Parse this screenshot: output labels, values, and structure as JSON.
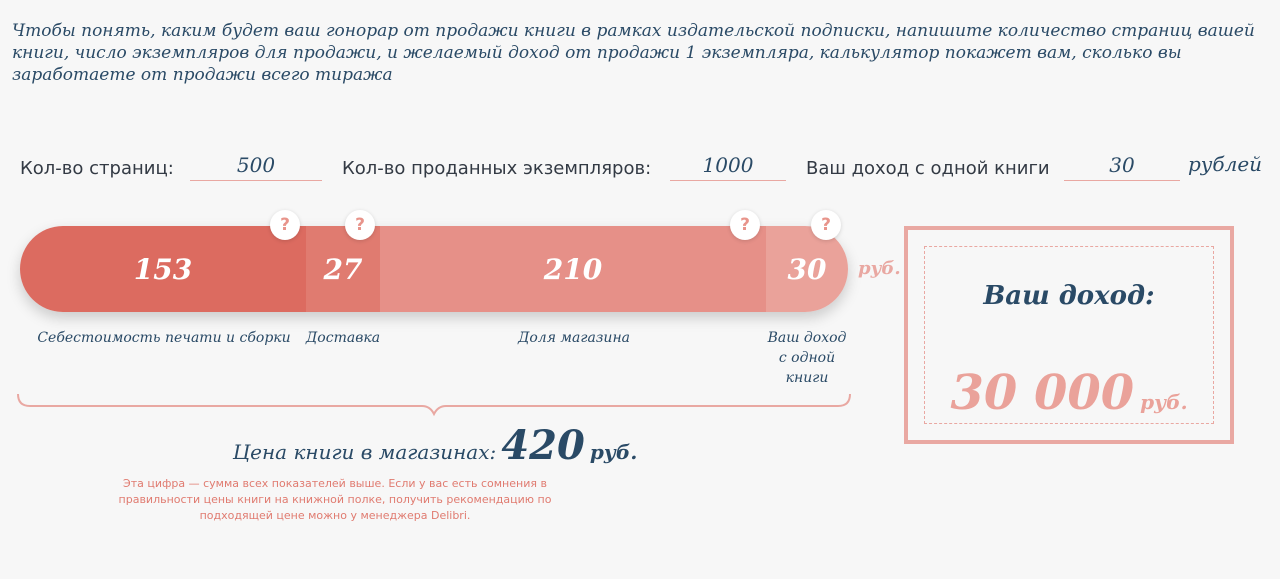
{
  "intro": "Чтобы понять, каким будет ваш гонорар от продажи книги в рамках издательской подписки, напишите количество страниц вашей книги, число экземпляров для продажи, и желаемый доход от продажи 1 экземпляра, калькулятор покажет вам, сколько вы заработаете от продажи всего тиража",
  "inputs": {
    "pages_label": "Кол-во страниц:",
    "pages_value": "500",
    "copies_label": "Кол-во проданных экземпляров:",
    "copies_value": "1000",
    "income_label": "Ваш доход с одной книги",
    "income_value": "30",
    "income_unit": "рублей"
  },
  "bar": {
    "segments": [
      {
        "value": "153",
        "label": "Себестоимость печати и сборки",
        "color": "#dc6b60"
      },
      {
        "value": "27",
        "label": "Доставка",
        "color": "#e07b70"
      },
      {
        "value": "210",
        "label": "Доля магазина",
        "color": "#e69088"
      },
      {
        "value": "30",
        "label": "Ваш доход с одной книги",
        "color": "#eaa29a"
      }
    ],
    "unit": "руб.",
    "help_glyph": "?"
  },
  "price": {
    "label": "Цена книги в магазинах:",
    "value": "420",
    "unit": "руб.",
    "note": "Эта цифра — сумма всех показателей выше. Если у вас есть сомнения в правильности цены книги на книжной полке, получить рекомендацию по подходящей цене можно у менеджера Delibri."
  },
  "income_box": {
    "title": "Ваш доход:",
    "value": "30 000",
    "unit": "руб."
  },
  "colors": {
    "accent": "#e9a8a2",
    "text": "#2a4a66",
    "bar_dark": "#dc6b60"
  }
}
